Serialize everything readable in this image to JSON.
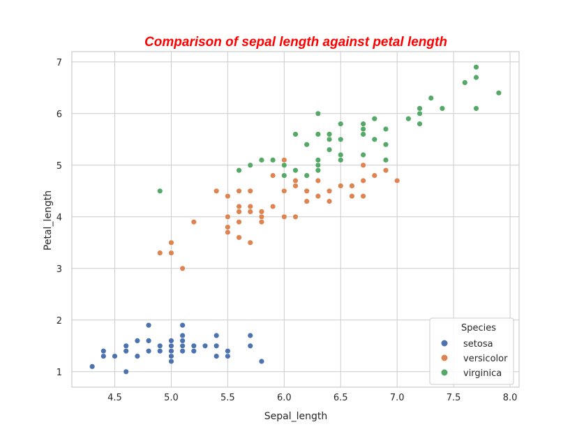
{
  "chart_data": {
    "type": "scatter",
    "title": "Comparison of sepal length against petal length",
    "xlabel": "Sepal_length",
    "ylabel": "Petal_length",
    "xlim": [
      4.12,
      8.08
    ],
    "ylim": [
      0.7,
      7.2
    ],
    "xticks": [
      "4.5",
      "5.0",
      "5.5",
      "6.0",
      "6.5",
      "7.0",
      "7.5",
      "8.0"
    ],
    "yticks": [
      "1",
      "2",
      "3",
      "4",
      "5",
      "6",
      "7"
    ],
    "grid": true,
    "legend": {
      "title": "Species",
      "position": "lower-right"
    },
    "series": [
      {
        "name": "setosa",
        "color": "#4c72b0",
        "points": [
          [
            4.3,
            1.1
          ],
          [
            4.4,
            1.3
          ],
          [
            4.4,
            1.4
          ],
          [
            4.5,
            1.3
          ],
          [
            4.6,
            1.0
          ],
          [
            4.6,
            1.4
          ],
          [
            4.6,
            1.5
          ],
          [
            4.7,
            1.3
          ],
          [
            4.7,
            1.6
          ],
          [
            4.8,
            1.4
          ],
          [
            4.8,
            1.6
          ],
          [
            4.8,
            1.9
          ],
          [
            4.9,
            1.4
          ],
          [
            4.9,
            1.5
          ],
          [
            5.0,
            1.2
          ],
          [
            5.0,
            1.3
          ],
          [
            5.0,
            1.4
          ],
          [
            5.0,
            1.5
          ],
          [
            5.0,
            1.6
          ],
          [
            5.1,
            1.4
          ],
          [
            5.1,
            1.5
          ],
          [
            5.1,
            1.6
          ],
          [
            5.1,
            1.7
          ],
          [
            5.1,
            1.9
          ],
          [
            5.2,
            1.4
          ],
          [
            5.2,
            1.5
          ],
          [
            5.3,
            1.5
          ],
          [
            5.4,
            1.3
          ],
          [
            5.4,
            1.5
          ],
          [
            5.4,
            1.7
          ],
          [
            5.5,
            1.3
          ],
          [
            5.5,
            1.4
          ],
          [
            5.7,
            1.5
          ],
          [
            5.7,
            1.7
          ],
          [
            5.8,
            1.2
          ]
        ]
      },
      {
        "name": "versicolor",
        "color": "#dd8452",
        "points": [
          [
            4.9,
            3.3
          ],
          [
            5.0,
            3.3
          ],
          [
            5.0,
            3.5
          ],
          [
            5.1,
            3.0
          ],
          [
            5.2,
            3.9
          ],
          [
            5.4,
            4.5
          ],
          [
            5.5,
            3.7
          ],
          [
            5.5,
            3.8
          ],
          [
            5.5,
            4.0
          ],
          [
            5.5,
            4.4
          ],
          [
            5.6,
            3.6
          ],
          [
            5.6,
            3.9
          ],
          [
            5.6,
            4.1
          ],
          [
            5.6,
            4.2
          ],
          [
            5.6,
            4.5
          ],
          [
            5.7,
            3.5
          ],
          [
            5.7,
            4.1
          ],
          [
            5.7,
            4.2
          ],
          [
            5.7,
            4.5
          ],
          [
            5.8,
            3.9
          ],
          [
            5.8,
            4.0
          ],
          [
            5.8,
            4.1
          ],
          [
            5.9,
            4.2
          ],
          [
            5.9,
            4.8
          ],
          [
            6.0,
            4.0
          ],
          [
            6.0,
            4.5
          ],
          [
            6.0,
            5.1
          ],
          [
            6.1,
            4.0
          ],
          [
            6.1,
            4.6
          ],
          [
            6.1,
            4.7
          ],
          [
            6.2,
            4.3
          ],
          [
            6.2,
            4.5
          ],
          [
            6.3,
            4.4
          ],
          [
            6.3,
            4.7
          ],
          [
            6.3,
            4.9
          ],
          [
            6.4,
            4.3
          ],
          [
            6.4,
            4.5
          ],
          [
            6.5,
            4.6
          ],
          [
            6.6,
            4.4
          ],
          [
            6.6,
            4.6
          ],
          [
            6.7,
            4.4
          ],
          [
            6.7,
            4.7
          ],
          [
            6.7,
            5.0
          ],
          [
            6.8,
            4.8
          ],
          [
            6.9,
            4.9
          ],
          [
            7.0,
            4.7
          ]
        ]
      },
      {
        "name": "virginica",
        "color": "#55a868",
        "points": [
          [
            4.9,
            4.5
          ],
          [
            5.6,
            4.9
          ],
          [
            5.7,
            5.0
          ],
          [
            5.8,
            5.1
          ],
          [
            5.9,
            5.1
          ],
          [
            6.0,
            4.8
          ],
          [
            6.0,
            5.0
          ],
          [
            6.1,
            4.9
          ],
          [
            6.1,
            5.6
          ],
          [
            6.2,
            4.8
          ],
          [
            6.2,
            5.4
          ],
          [
            6.3,
            4.9
          ],
          [
            6.3,
            5.0
          ],
          [
            6.3,
            5.1
          ],
          [
            6.3,
            5.6
          ],
          [
            6.3,
            6.0
          ],
          [
            6.4,
            5.3
          ],
          [
            6.4,
            5.5
          ],
          [
            6.4,
            5.6
          ],
          [
            6.5,
            5.1
          ],
          [
            6.5,
            5.2
          ],
          [
            6.5,
            5.5
          ],
          [
            6.5,
            5.8
          ],
          [
            6.7,
            5.2
          ],
          [
            6.7,
            5.6
          ],
          [
            6.7,
            5.7
          ],
          [
            6.7,
            5.8
          ],
          [
            6.8,
            5.5
          ],
          [
            6.8,
            5.9
          ],
          [
            6.9,
            5.1
          ],
          [
            6.9,
            5.4
          ],
          [
            6.9,
            5.7
          ],
          [
            7.1,
            5.9
          ],
          [
            7.2,
            5.8
          ],
          [
            7.2,
            6.0
          ],
          [
            7.2,
            6.1
          ],
          [
            7.3,
            6.3
          ],
          [
            7.4,
            6.1
          ],
          [
            7.6,
            6.6
          ],
          [
            7.7,
            6.1
          ],
          [
            7.7,
            6.7
          ],
          [
            7.7,
            6.9
          ],
          [
            7.9,
            6.4
          ]
        ]
      }
    ]
  }
}
